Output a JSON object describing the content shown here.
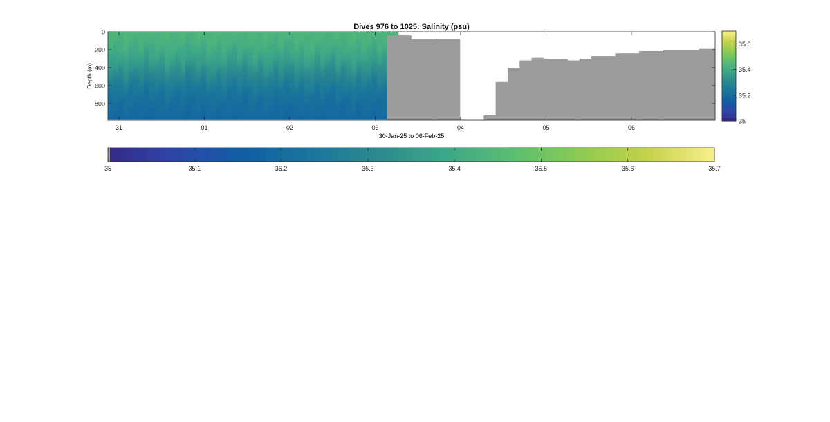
{
  "chart_data": {
    "type": "heatmap",
    "title": "Dives 976 to 1025: Salinity (psu)",
    "xlabel": "30-Jan-25 to 06-Feb-25",
    "ylabel": "Depth (m)",
    "x_ticks": [
      "31",
      "01",
      "02",
      "03",
      "04",
      "05",
      "06"
    ],
    "x_tick_values_days": [
      1,
      2,
      3,
      4,
      5,
      6,
      7
    ],
    "xlim_days": [
      0.87,
      7.98
    ],
    "ylim": [
      0,
      985
    ],
    "y_reversed": true,
    "y_ticks": [
      0,
      200,
      400,
      600,
      800
    ],
    "y_tick_labels": [
      "0",
      "200",
      "400",
      "600",
      "800"
    ],
    "nodata_color": "#9b9b9b",
    "colormap": [
      "#352a87",
      "#2d46a8",
      "#115ea4",
      "#1a769a",
      "#2b8a8f",
      "#3ca788",
      "#5bbd72",
      "#8ccb52",
      "#c5d24a",
      "#f8f08a"
    ],
    "color_range": [
      35,
      35.7
    ],
    "profile_model": {
      "segments": [
        {
          "t_start": 0.87,
          "t_end": 4.14,
          "top": 35.45,
          "bottom": 35.18,
          "mid_depth": 450,
          "spread": 160,
          "max_depth": 975
        },
        {
          "t_start": 4.14,
          "t_end": 4.27,
          "top": 35.45,
          "bottom": 35.17,
          "mid_depth": 420,
          "spread": 150,
          "max_depth": 950
        }
      ]
    },
    "nodata_blocks": [
      {
        "t_start": 4.14,
        "t_end": 4.42,
        "depth_top": 40
      },
      {
        "t_start": 4.42,
        "t_end": 4.7,
        "depth_top": 85
      },
      {
        "t_start": 4.7,
        "t_end": 4.99,
        "depth_top": 80
      },
      {
        "t_start": 5.27,
        "t_end": 5.41,
        "depth_top": 930
      },
      {
        "t_start": 5.41,
        "t_end": 5.55,
        "depth_top": 560
      },
      {
        "t_start": 5.55,
        "t_end": 5.69,
        "depth_top": 400
      },
      {
        "t_start": 5.69,
        "t_end": 5.83,
        "depth_top": 320
      },
      {
        "t_start": 5.83,
        "t_end": 5.97,
        "depth_top": 290
      },
      {
        "t_start": 5.97,
        "t_end": 6.25,
        "depth_top": 300
      },
      {
        "t_start": 6.25,
        "t_end": 6.39,
        "depth_top": 320
      },
      {
        "t_start": 6.39,
        "t_end": 6.53,
        "depth_top": 300
      },
      {
        "t_start": 6.53,
        "t_end": 6.81,
        "depth_top": 270
      },
      {
        "t_start": 6.81,
        "t_end": 7.09,
        "depth_top": 240
      },
      {
        "t_start": 7.09,
        "t_end": 7.37,
        "depth_top": 215
      },
      {
        "t_start": 7.37,
        "t_end": 7.79,
        "depth_top": 200
      },
      {
        "t_start": 7.79,
        "t_end": 7.98,
        "depth_top": 190
      }
    ],
    "side_colorbar": {
      "ticks": [
        35,
        35.2,
        35.4,
        35.6
      ],
      "tick_labels": [
        "35",
        "35.2",
        "35.4",
        "35.6"
      ]
    },
    "bottom_colorbar": {
      "ticks": [
        35,
        35.1,
        35.2,
        35.3,
        35.4,
        35.5,
        35.6,
        35.7
      ],
      "tick_labels": [
        "35",
        "35.1",
        "35.2",
        "35.3",
        "35.4",
        "35.5",
        "35.6",
        "35.7"
      ]
    }
  }
}
